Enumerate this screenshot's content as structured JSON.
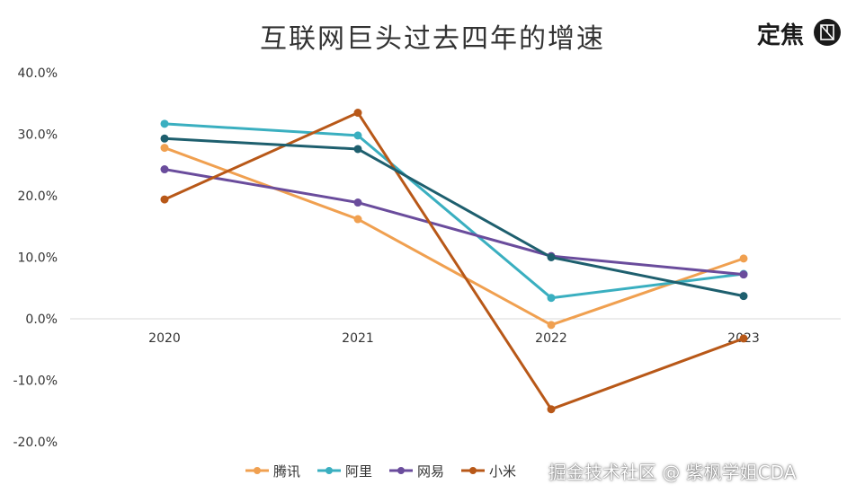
{
  "header": {
    "title": "互联网巨头过去四年的增速",
    "brand": "定焦"
  },
  "watermark": "掘金技术社区 @ 紫枫学姐CDA",
  "chart_data": {
    "type": "line",
    "title": "互联网巨头过去四年的增速",
    "xlabel": "",
    "ylabel": "",
    "categories": [
      "2020",
      "2021",
      "2022",
      "2023"
    ],
    "ylim": [
      -20,
      40
    ],
    "yticks": [
      40,
      30,
      20,
      10,
      0,
      -10,
      -20
    ],
    "ytick_labels": [
      "40.0%",
      "30.0%",
      "20.0%",
      "10.0%",
      "0.0%",
      "-10.0%",
      "-20.0%"
    ],
    "grid": false,
    "legend_position": "bottom",
    "series": [
      {
        "name": "腾讯",
        "color": "#F0A050",
        "values": [
          27.8,
          16.2,
          -1.0,
          9.8
        ]
      },
      {
        "name": "阿里",
        "color": "#3AAFC0",
        "values": [
          31.7,
          29.8,
          3.4,
          7.3
        ]
      },
      {
        "name": "网易",
        "color": "#6A4C9C",
        "values": [
          24.3,
          18.9,
          10.2,
          7.2
        ]
      },
      {
        "name": "小米",
        "color": "#B85818",
        "values": [
          19.4,
          33.5,
          -14.7,
          -3.2
        ]
      },
      {
        "name": "",
        "color": "#1E5F6E",
        "values": [
          29.3,
          27.6,
          10.0,
          3.7
        ]
      }
    ]
  }
}
